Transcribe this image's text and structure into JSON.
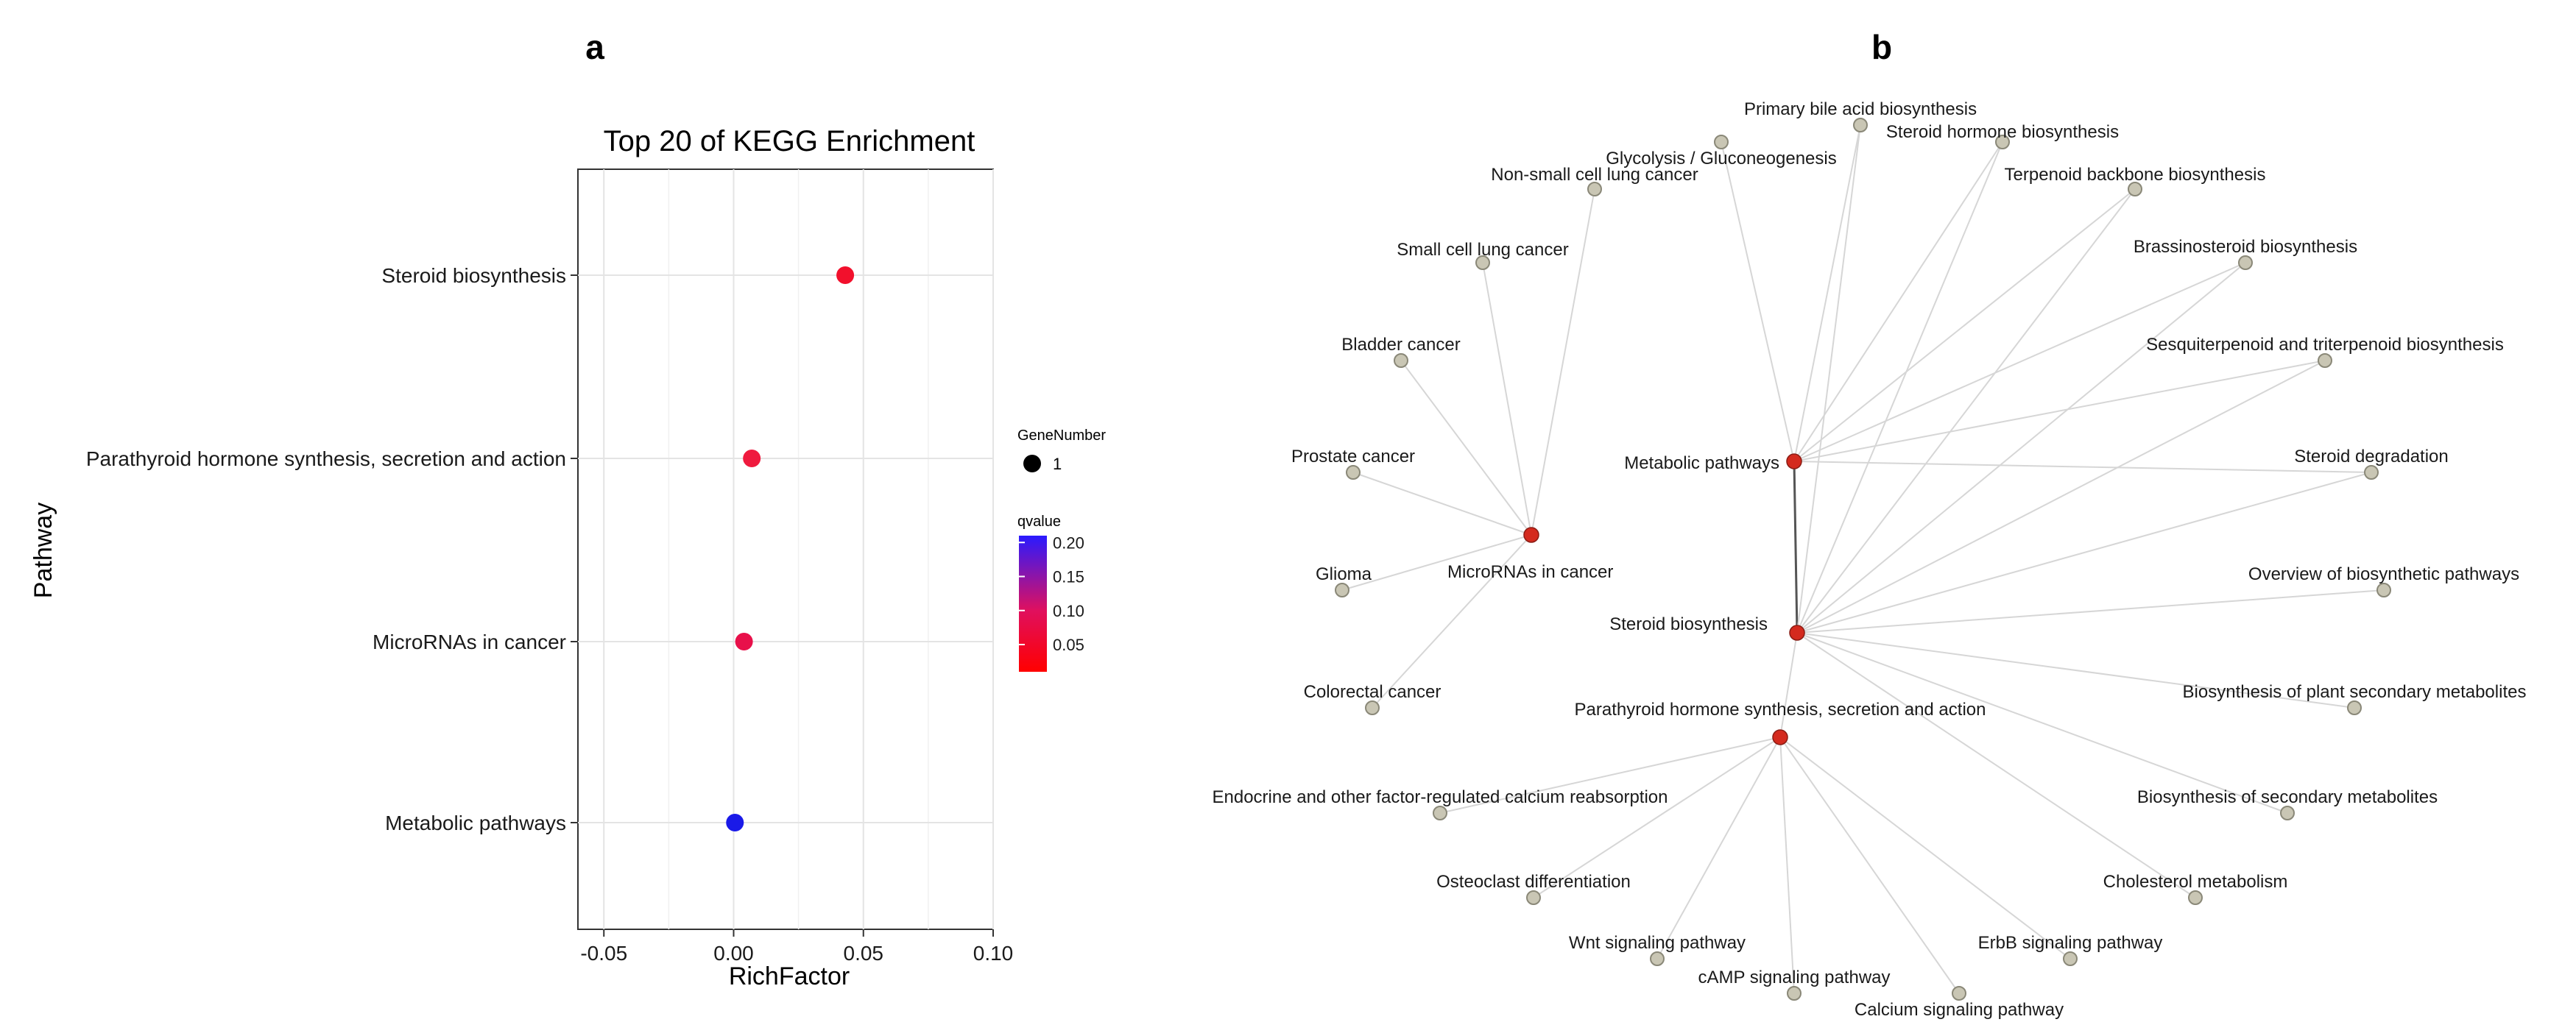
{
  "panel_a": {
    "label": "a",
    "chart_data": {
      "type": "scatter",
      "title": "Top 20 of KEGG Enrichment",
      "xlabel": "RichFactor",
      "ylabel": "Pathway",
      "xlim": [
        -0.06,
        0.1
      ],
      "xticks": [
        -0.05,
        0.0,
        0.05,
        0.1
      ],
      "xtick_labels": [
        "-0.05",
        "0.00",
        "0.05",
        "0.10"
      ],
      "grid": true,
      "categories": [
        "Steroid biosynthesis",
        "Parathyroid hormone synthesis, secretion and action",
        "MicroRNAs in cancer",
        "Metabolic pathways"
      ],
      "points": [
        {
          "pathway": "Steroid biosynthesis",
          "richfactor": 0.043,
          "qvalue": 0.02,
          "gene_number": 1,
          "color": "#f2102c"
        },
        {
          "pathway": "Parathyroid hormone synthesis, secretion and action",
          "richfactor": 0.007,
          "qvalue": 0.03,
          "gene_number": 1,
          "color": "#ef1a3e"
        },
        {
          "pathway": "MicroRNAs in cancer",
          "richfactor": 0.004,
          "qvalue": 0.04,
          "gene_number": 1,
          "color": "#e8104a"
        },
        {
          "pathway": "Metabolic pathways",
          "richfactor": 0.0005,
          "qvalue": 0.2,
          "gene_number": 1,
          "color": "#1a1ae8"
        }
      ],
      "legend_size": {
        "title": "GeneNumber",
        "entries": [
          "1"
        ]
      },
      "legend_color": {
        "title": "qvalue",
        "ticks": [
          "0.20",
          "0.15",
          "0.10",
          "0.05"
        ],
        "range": [
          0.01,
          0.21
        ],
        "low_color": "#ff0000",
        "high_color": "#2a1aff"
      }
    }
  },
  "panel_b": {
    "label": "b",
    "node_color_hub": "#d42a1e",
    "node_color_leaf": "#c9c6b4",
    "hubs": [
      {
        "id": "mp",
        "label": "Metabolic pathways"
      },
      {
        "id": "sb",
        "label": "Steroid biosynthesis"
      },
      {
        "id": "mir",
        "label": "MicroRNAs in cancer"
      },
      {
        "id": "pth",
        "label": "Parathyroid hormone synthesis, secretion and action"
      }
    ],
    "leaves": [
      {
        "id": "pba",
        "label": "Primary bile acid biosynthesis"
      },
      {
        "id": "gly",
        "label": "Glycolysis / Gluconeogenesis"
      },
      {
        "id": "shb",
        "label": "Steroid hormone biosynthesis"
      },
      {
        "id": "nsc",
        "label": "Non-small cell lung cancer"
      },
      {
        "id": "tbb",
        "label": "Terpenoid backbone biosynthesis"
      },
      {
        "id": "scl",
        "label": "Small cell lung cancer"
      },
      {
        "id": "bsb",
        "label": "Brassinosteroid biosynthesis"
      },
      {
        "id": "bla",
        "label": "Bladder cancer"
      },
      {
        "id": "stb",
        "label": "Sesquiterpenoid and triterpenoid biosynthesis"
      },
      {
        "id": "pro",
        "label": "Prostate cancer"
      },
      {
        "id": "sdg",
        "label": "Steroid degradation"
      },
      {
        "id": "gli",
        "label": "Glioma"
      },
      {
        "id": "obp",
        "label": "Overview of biosynthetic pathways"
      },
      {
        "id": "crc",
        "label": "Colorectal cancer"
      },
      {
        "id": "bpsm",
        "label": "Biosynthesis of plant secondary metabolites"
      },
      {
        "id": "ecr",
        "label": "Endocrine and other factor-regulated calcium reabsorption"
      },
      {
        "id": "bsm",
        "label": "Biosynthesis of secondary metabolites"
      },
      {
        "id": "ost",
        "label": "Osteoclast differentiation"
      },
      {
        "id": "chm",
        "label": "Cholesterol metabolism"
      },
      {
        "id": "wnt",
        "label": "Wnt signaling pathway"
      },
      {
        "id": "erb",
        "label": "ErbB signaling pathway"
      },
      {
        "id": "camp",
        "label": "cAMP signaling pathway"
      },
      {
        "id": "cal",
        "label": "Calcium signaling pathway"
      }
    ],
    "edges": [
      [
        "mp",
        "sb"
      ],
      [
        "mp",
        "pba"
      ],
      [
        "mp",
        "gly"
      ],
      [
        "mp",
        "shb"
      ],
      [
        "mp",
        "tbb"
      ],
      [
        "mp",
        "bsb"
      ],
      [
        "mp",
        "stb"
      ],
      [
        "mp",
        "sdg"
      ],
      [
        "sb",
        "pba"
      ],
      [
        "sb",
        "shb"
      ],
      [
        "sb",
        "tbb"
      ],
      [
        "sb",
        "bsb"
      ],
      [
        "sb",
        "stb"
      ],
      [
        "sb",
        "sdg"
      ],
      [
        "sb",
        "obp"
      ],
      [
        "sb",
        "bpsm"
      ],
      [
        "sb",
        "bsm"
      ],
      [
        "sb",
        "chm"
      ],
      [
        "sb",
        "pth"
      ],
      [
        "mir",
        "nsc"
      ],
      [
        "mir",
        "scl"
      ],
      [
        "mir",
        "bla"
      ],
      [
        "mir",
        "pro"
      ],
      [
        "mir",
        "gli"
      ],
      [
        "mir",
        "crc"
      ],
      [
        "pth",
        "ecr"
      ],
      [
        "pth",
        "ost"
      ],
      [
        "pth",
        "wnt"
      ],
      [
        "pth",
        "camp"
      ],
      [
        "pth",
        "cal"
      ],
      [
        "pth",
        "erb"
      ]
    ]
  }
}
